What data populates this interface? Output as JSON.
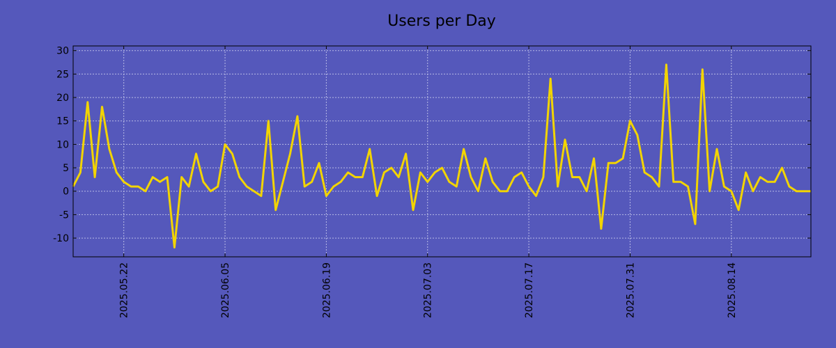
{
  "chart_data": {
    "type": "line",
    "title": "Users per Day",
    "xlabel": "",
    "ylabel": "",
    "ylim": [
      -14,
      31
    ],
    "yticks": [
      -10,
      -5,
      0,
      5,
      10,
      15,
      20,
      25,
      30
    ],
    "x_start": "2025.05.15",
    "xlim": [
      "2025.05.15",
      "2025.08.25"
    ],
    "xticks": [
      "2025.05.22",
      "2025.06.05",
      "2025.06.19",
      "2025.07.03",
      "2025.07.17",
      "2025.07.31",
      "2025.08.14"
    ],
    "grid": true,
    "series": [
      {
        "color": "#f2d400",
        "values": [
          1,
          4,
          19,
          3,
          18,
          9,
          4,
          2,
          1,
          1,
          0,
          3,
          2,
          3,
          -12,
          3,
          1,
          8,
          2,
          0,
          1,
          10,
          8,
          3,
          1,
          0,
          -1,
          15,
          -4,
          2,
          8,
          16,
          1,
          2,
          6,
          -1,
          1,
          2,
          4,
          3,
          3,
          9,
          -1,
          4,
          5,
          3,
          8,
          -4,
          4,
          2,
          4,
          5,
          2,
          1,
          9,
          3,
          0,
          7,
          2,
          0,
          0,
          3,
          4,
          1,
          -1,
          3,
          24,
          1,
          11,
          3,
          3,
          0,
          7,
          -8,
          6,
          6,
          7,
          15,
          12,
          4,
          3,
          1,
          27,
          2,
          2,
          1,
          -7,
          26,
          0,
          9,
          1,
          0,
          -4,
          4,
          0,
          3,
          2,
          2,
          5,
          1,
          0,
          0,
          0
        ]
      }
    ]
  }
}
